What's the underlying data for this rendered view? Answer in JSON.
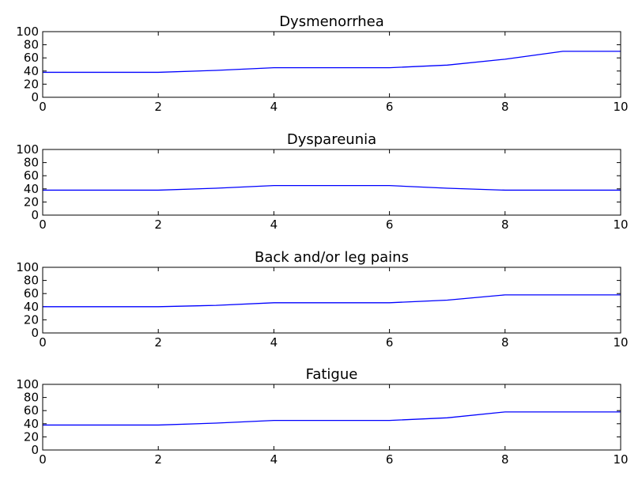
{
  "chart_data": [
    {
      "type": "line",
      "title": "Dysmenorrhea",
      "xlabel": "",
      "ylabel": "",
      "xlim": [
        0,
        10
      ],
      "ylim": [
        0,
        100
      ],
      "xticks": [
        "0",
        "2",
        "4",
        "6",
        "8",
        "10"
      ],
      "yticks": [
        "0",
        "20",
        "40",
        "60",
        "80",
        "100"
      ],
      "grid": false,
      "series": [
        {
          "color": "#0000ff",
          "x": [
            0,
            1,
            2,
            3,
            4,
            5,
            6,
            7,
            8,
            9,
            10
          ],
          "y": [
            38,
            38,
            38,
            41,
            45,
            45,
            45,
            49,
            58,
            70,
            70
          ]
        }
      ]
    },
    {
      "type": "line",
      "title": "Dyspareunia",
      "xlabel": "",
      "ylabel": "",
      "xlim": [
        0,
        10
      ],
      "ylim": [
        0,
        100
      ],
      "xticks": [
        "0",
        "2",
        "4",
        "6",
        "8",
        "10"
      ],
      "yticks": [
        "0",
        "20",
        "40",
        "60",
        "80",
        "100"
      ],
      "grid": false,
      "series": [
        {
          "color": "#0000ff",
          "x": [
            0,
            1,
            2,
            3,
            4,
            5,
            6,
            7,
            8,
            9,
            10
          ],
          "y": [
            38,
            38,
            38,
            41,
            45,
            45,
            45,
            41,
            38,
            38,
            38
          ]
        }
      ]
    },
    {
      "type": "line",
      "title": "Back and/or leg pains",
      "xlabel": "",
      "ylabel": "",
      "xlim": [
        0,
        10
      ],
      "ylim": [
        0,
        100
      ],
      "xticks": [
        "0",
        "2",
        "4",
        "6",
        "8",
        "10"
      ],
      "yticks": [
        "0",
        "20",
        "40",
        "60",
        "80",
        "100"
      ],
      "grid": false,
      "series": [
        {
          "color": "#0000ff",
          "x": [
            0,
            1,
            2,
            3,
            4,
            5,
            6,
            7,
            8,
            9,
            10
          ],
          "y": [
            40,
            40,
            40,
            42,
            46,
            46,
            46,
            50,
            58,
            58,
            58
          ]
        }
      ]
    },
    {
      "type": "line",
      "title": "Fatigue",
      "xlabel": "",
      "ylabel": "",
      "xlim": [
        0,
        10
      ],
      "ylim": [
        0,
        100
      ],
      "xticks": [
        "0",
        "2",
        "4",
        "6",
        "8",
        "10"
      ],
      "yticks": [
        "0",
        "20",
        "40",
        "60",
        "80",
        "100"
      ],
      "grid": false,
      "series": [
        {
          "color": "#0000ff",
          "x": [
            0,
            1,
            2,
            3,
            4,
            5,
            6,
            7,
            8,
            9,
            10
          ],
          "y": [
            38,
            38,
            38,
            41,
            45,
            45,
            45,
            49,
            58,
            58,
            58
          ]
        }
      ]
    }
  ]
}
